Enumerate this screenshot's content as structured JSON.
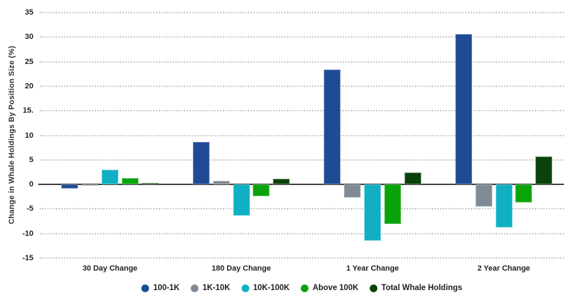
{
  "chart_data": {
    "type": "bar",
    "title": "",
    "ylabel": "Change in Whale Holdings By Position Size (%)",
    "xlabel": "",
    "categories": [
      "30 Day Change",
      "180 Day Change",
      "1 Year Change",
      "2 Year Change"
    ],
    "series": [
      {
        "name": "100-1K",
        "color": "#1e4b94",
        "values": [
          -0.9,
          8.7,
          23.4,
          30.6
        ]
      },
      {
        "name": "1K-10K",
        "color": "#7f8a94",
        "values": [
          -0.2,
          0.7,
          -2.7,
          -4.5
        ]
      },
      {
        "name": "10K-100K",
        "color": "#10afc3",
        "values": [
          3.0,
          -6.3,
          -11.5,
          -8.8
        ]
      },
      {
        "name": "Above 100K",
        "color": "#09a40a",
        "values": [
          1.3,
          -2.4,
          -8.1,
          -3.6
        ]
      },
      {
        "name": "Total Whale Holdings",
        "color": "#0a420a",
        "values": [
          0.3,
          1.1,
          2.4,
          5.7
        ]
      }
    ],
    "ylim": [
      -15,
      35
    ],
    "ytick_step": 5,
    "y_tick_labels": [
      "35",
      "30",
      "25",
      "20",
      "15.",
      "10",
      "5",
      "0",
      "-5",
      "-10",
      "-15"
    ],
    "grid": "horizontal-dotted",
    "legend_position": "bottom",
    "zero_line": true
  },
  "colors": {
    "gridline": "#c9c9c9",
    "zero_line": "#3f3f3f",
    "text": "#222222",
    "background": "#ffffff"
  }
}
